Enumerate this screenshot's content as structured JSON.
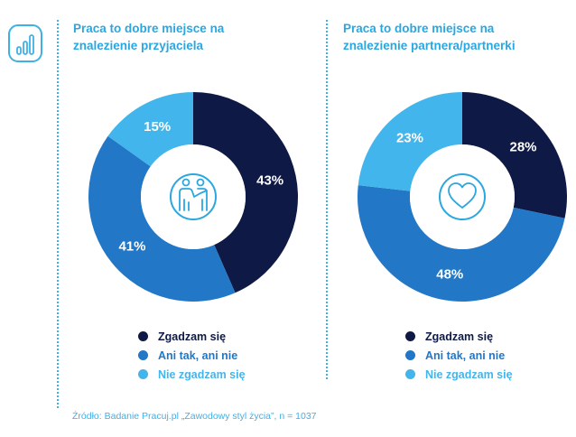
{
  "colors": {
    "agree": "#0e1a45",
    "neutral": "#2277c6",
    "disagree": "#42b6ec",
    "accent": "#2ba7e0"
  },
  "logo_icon": "bar-chart-icon",
  "chart_data": [
    {
      "type": "pie",
      "variant": "donut",
      "title_lines": [
        "Praca to dobre miejsce na",
        "znalezienie przyjaciela"
      ],
      "center_icon": "friends-icon",
      "slices": [
        {
          "label": "Zgadzam się",
          "value": 43,
          "color": "#0e1a45",
          "text": "43%"
        },
        {
          "label": "Ani tak, ani nie",
          "value": 41,
          "color": "#2277c6",
          "text": "41%"
        },
        {
          "label": "Nie zgadzam się",
          "value": 15,
          "color": "#42b6ec",
          "text": "15%"
        }
      ]
    },
    {
      "type": "pie",
      "variant": "donut",
      "title_lines": [
        "Praca to dobre miejsce na",
        "znalezienie partnera/partnerki"
      ],
      "center_icon": "heart-icon",
      "slices": [
        {
          "label": "Zgadzam się",
          "value": 28,
          "color": "#0e1a45",
          "text": "28%"
        },
        {
          "label": "Ani tak, ani nie",
          "value": 48,
          "color": "#2277c6",
          "text": "48%"
        },
        {
          "label": "Nie zgadzam się",
          "value": 23,
          "color": "#42b6ec",
          "text": "23%"
        }
      ]
    }
  ],
  "legend": [
    {
      "label": "Zgadzam się",
      "color": "#0e1a45"
    },
    {
      "label": "Ani tak, ani nie",
      "color": "#2277c6"
    },
    {
      "label": "Nie zgadzam się",
      "color": "#42b6ec"
    }
  ],
  "source": "Źródło: Badanie Pracuj.pl „Zawodowy styl życia”, n = 1037"
}
